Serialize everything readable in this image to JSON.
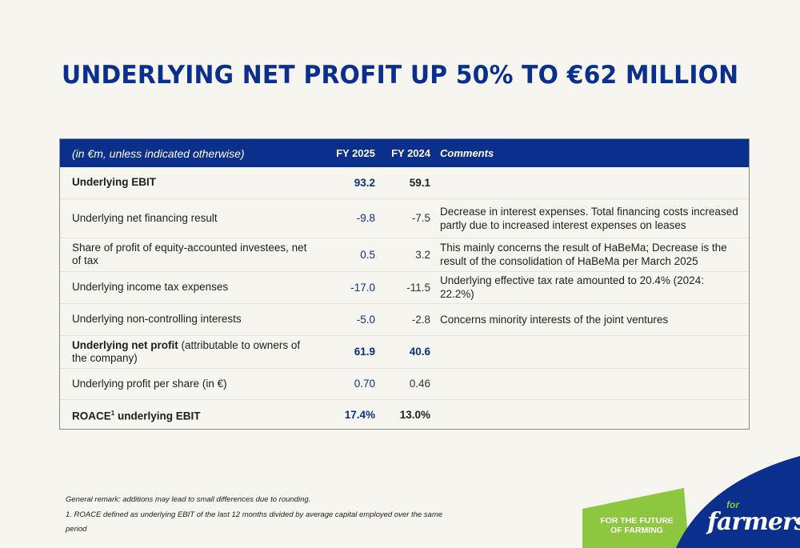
{
  "title": "UNDERLYING NET PROFIT UP 50% TO €62 MILLION",
  "table": {
    "header": {
      "unit": "(in €m, unless indicated otherwise)",
      "fy2025": "FY 2025",
      "fy2024": "FY 2024",
      "comments": "Comments"
    },
    "rows": [
      {
        "label": "Underlying EBIT",
        "fy2025": "93.2",
        "fy2024": "59.1",
        "comment": ""
      },
      {
        "label": "Underlying net financing result",
        "fy2025": "-9.8",
        "fy2024": "-7.5",
        "comment": "Decrease in interest expenses. Total financing costs increased partly due to increased interest expenses on leases"
      },
      {
        "label": "Share of profit of equity-accounted investees, net of tax",
        "fy2025": "0.5",
        "fy2024": "3.2",
        "comment": "This mainly concerns the result of HaBeMa; Decrease is the result of the consolidation of HaBeMa per March 2025"
      },
      {
        "label": "Underlying income tax expenses",
        "fy2025": "-17.0",
        "fy2024": "-11.5",
        "comment": "Underlying effective tax rate amounted to 20.4% (2024: 22.2%)"
      },
      {
        "label": "Underlying non-controlling interests",
        "fy2025": "-5.0",
        "fy2024": "-2.8",
        "comment": "Concerns minority interests of the joint ventures"
      },
      {
        "label_bold": "Underlying net profit",
        "label_rest": " (attributable to owners of the company)",
        "fy2025": "61.9",
        "fy2024": "40.6",
        "comment": ""
      },
      {
        "label": "Underlying profit per share (in €)",
        "fy2025": "0.70",
        "fy2024": "0.46",
        "comment": ""
      },
      {
        "label_pre": "ROACE",
        "label_sup": "1",
        "label_post": " underlying EBIT",
        "fy2025": "17.4%",
        "fy2024": "13.0%",
        "comment": ""
      }
    ]
  },
  "footnotes": {
    "remark": "General remark: additions may lead to small differences due to rounding.",
    "note1_line1": "1. ROACE defined as underlying EBIT of the last 12 months divided by average capital employed over the same",
    "note1_line2": "period"
  },
  "brand": {
    "tagline_line1": "FOR THE FUTURE",
    "tagline_line2": "OF FARMING",
    "logo_for": "for",
    "logo_farmers": "farmers"
  },
  "colors": {
    "navy": "#0a2f8c",
    "green": "#8dc63f",
    "background": "#f7f5f0"
  }
}
